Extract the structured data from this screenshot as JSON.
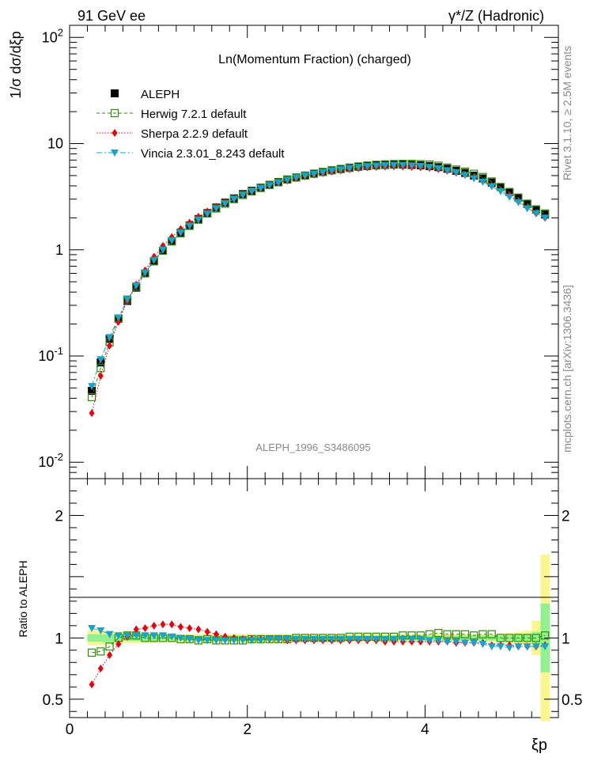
{
  "header": {
    "left": "91 GeV ee",
    "right": "γ*/Z (Hadronic)"
  },
  "side_labels": {
    "rivet": "Rivet 3.1.10, ≥ 2.5M events",
    "mcplots": "mcplots.cern.ch [arXiv:1306.3436]"
  },
  "chart_data": [
    {
      "type": "scatter",
      "panel": "main",
      "title": "Ln(Momentum Fraction) (charged)",
      "ylabel": "1/σ dσ/dξp",
      "watermark": "ALEPH_1996_S3486095",
      "yscale": "log",
      "ylim": [
        0.007,
        130
      ],
      "xlim": [
        0,
        5.5
      ],
      "y_tick_labels": [
        "10^-2",
        "10^-1",
        "1",
        "10",
        "10^2"
      ],
      "legend_position": "top-left",
      "colors": {
        "ALEPH": "#000000",
        "Herwig": "#2e8b0a",
        "Sherpa": "#e8000b",
        "Vincia": "#1ba2c9"
      },
      "x": [
        0.25,
        0.35,
        0.45,
        0.55,
        0.65,
        0.75,
        0.85,
        0.95,
        1.05,
        1.15,
        1.25,
        1.35,
        1.45,
        1.55,
        1.65,
        1.75,
        1.85,
        1.95,
        2.05,
        2.15,
        2.25,
        2.35,
        2.45,
        2.55,
        2.65,
        2.75,
        2.85,
        2.95,
        3.05,
        3.15,
        3.25,
        3.35,
        3.45,
        3.55,
        3.65,
        3.75,
        3.85,
        3.95,
        4.05,
        4.15,
        4.25,
        4.35,
        4.45,
        4.55,
        4.65,
        4.75,
        4.85,
        4.95,
        5.05,
        5.15,
        5.25,
        5.35
      ],
      "series": [
        {
          "name": "ALEPH",
          "marker": "square-filled",
          "values": [
            0.047,
            0.087,
            0.145,
            0.225,
            0.33,
            0.44,
            0.6,
            0.78,
            0.98,
            1.2,
            1.45,
            1.7,
            1.95,
            2.22,
            2.5,
            2.78,
            3.05,
            3.35,
            3.6,
            3.85,
            4.1,
            4.35,
            4.6,
            4.8,
            5.0,
            5.2,
            5.4,
            5.6,
            5.75,
            5.9,
            6.05,
            6.15,
            6.25,
            6.3,
            6.35,
            6.35,
            6.3,
            6.25,
            6.15,
            6.0,
            5.8,
            5.55,
            5.3,
            5.0,
            4.7,
            4.3,
            3.9,
            3.5,
            3.1,
            2.7,
            2.4,
            2.15
          ]
        },
        {
          "name": "Herwig 7.2.1 default",
          "marker": "square-open",
          "values": [
            0.041,
            0.077,
            0.135,
            0.225,
            0.34,
            0.45,
            0.6,
            0.78,
            0.98,
            1.2,
            1.43,
            1.68,
            1.92,
            2.2,
            2.45,
            2.72,
            3.0,
            3.28,
            3.55,
            3.82,
            4.08,
            4.32,
            4.58,
            4.8,
            5.0,
            5.22,
            5.42,
            5.62,
            5.78,
            5.95,
            6.1,
            6.22,
            6.32,
            6.38,
            6.42,
            6.45,
            6.45,
            6.4,
            6.35,
            6.2,
            5.95,
            5.7,
            5.45,
            5.2,
            4.85,
            4.4,
            3.9,
            3.5,
            3.1,
            2.72,
            2.4,
            2.2
          ]
        },
        {
          "name": "Sherpa 2.2.9 default",
          "marker": "diamond-filled",
          "values": [
            0.029,
            0.065,
            0.125,
            0.21,
            0.33,
            0.47,
            0.64,
            0.86,
            1.09,
            1.32,
            1.57,
            1.8,
            2.05,
            2.3,
            2.55,
            2.8,
            3.05,
            3.3,
            3.55,
            3.8,
            4.05,
            4.3,
            4.5,
            4.72,
            4.92,
            5.1,
            5.28,
            5.45,
            5.6,
            5.75,
            5.88,
            5.98,
            6.05,
            6.1,
            6.12,
            6.1,
            6.05,
            5.98,
            5.9,
            5.75,
            5.55,
            5.32,
            5.08,
            4.82,
            4.45,
            4.05,
            3.65,
            3.25,
            2.85,
            2.5,
            2.2,
            2.0
          ]
        },
        {
          "name": "Vincia 2.3.01_8.243 default",
          "marker": "triangle-down-filled",
          "values": [
            0.052,
            0.093,
            0.15,
            0.23,
            0.34,
            0.46,
            0.61,
            0.8,
            1.0,
            1.22,
            1.45,
            1.68,
            1.92,
            2.18,
            2.45,
            2.72,
            3.0,
            3.28,
            3.55,
            3.8,
            4.05,
            4.3,
            4.55,
            4.78,
            4.98,
            5.18,
            5.38,
            5.58,
            5.72,
            5.88,
            6.02,
            6.12,
            6.2,
            6.25,
            6.28,
            6.28,
            6.22,
            6.15,
            6.02,
            5.85,
            5.6,
            5.35,
            5.05,
            4.7,
            4.35,
            3.95,
            3.55,
            3.15,
            2.8,
            2.45,
            2.2,
            2.0
          ]
        }
      ]
    },
    {
      "type": "scatter",
      "panel": "ratio",
      "ylabel": "Ratio to ALEPH",
      "xlabel": "ξp",
      "ylim": [
        0.35,
        2.3
      ],
      "xlim": [
        0,
        5.5
      ],
      "x_tick_labels": [
        "0",
        "2",
        "4"
      ],
      "y_tick_labels": [
        "0.5",
        "1",
        "2"
      ],
      "x": [
        0.25,
        0.35,
        0.45,
        0.55,
        0.65,
        0.75,
        0.85,
        0.95,
        1.05,
        1.15,
        1.25,
        1.35,
        1.45,
        1.55,
        1.65,
        1.75,
        1.85,
        1.95,
        2.05,
        2.15,
        2.25,
        2.35,
        2.45,
        2.55,
        2.65,
        2.75,
        2.85,
        2.95,
        3.05,
        3.15,
        3.25,
        3.35,
        3.45,
        3.55,
        3.65,
        3.75,
        3.85,
        3.95,
        4.05,
        4.15,
        4.25,
        4.35,
        4.45,
        4.55,
        4.65,
        4.75,
        4.85,
        4.95,
        5.05,
        5.15,
        5.25,
        5.35
      ],
      "uncertainty_band": {
        "inner": [
          0.03,
          0.03,
          0.03,
          0.03,
          0.025,
          0.025,
          0.025,
          0.025,
          0.02,
          0.02,
          0.02,
          0.02,
          0.02,
          0.02,
          0.02,
          0.02,
          0.02,
          0.02,
          0.02,
          0.02,
          0.02,
          0.02,
          0.02,
          0.02,
          0.02,
          0.02,
          0.02,
          0.02,
          0.02,
          0.02,
          0.02,
          0.02,
          0.02,
          0.02,
          0.02,
          0.02,
          0.02,
          0.02,
          0.02,
          0.02,
          0.02,
          0.02,
          0.02,
          0.02,
          0.02,
          0.02,
          0.02,
          0.02,
          0.03,
          0.03,
          0.05,
          0.28
        ],
        "outer": [
          0.06,
          0.06,
          0.05,
          0.05,
          0.04,
          0.04,
          0.04,
          0.04,
          0.035,
          0.035,
          0.03,
          0.03,
          0.03,
          0.03,
          0.03,
          0.03,
          0.03,
          0.03,
          0.03,
          0.03,
          0.03,
          0.03,
          0.03,
          0.03,
          0.03,
          0.03,
          0.03,
          0.03,
          0.03,
          0.03,
          0.03,
          0.03,
          0.03,
          0.03,
          0.03,
          0.03,
          0.03,
          0.03,
          0.03,
          0.03,
          0.03,
          0.03,
          0.03,
          0.03,
          0.03,
          0.03,
          0.035,
          0.04,
          0.05,
          0.06,
          0.14,
          0.68
        ]
      },
      "series": [
        {
          "name": "Herwig 7.2.1 default",
          "marker": "square-open",
          "values": [
            0.88,
            0.89,
            0.93,
            1.0,
            1.02,
            1.02,
            1.0,
            1.0,
            1.0,
            1.0,
            0.99,
            0.99,
            0.98,
            0.99,
            0.98,
            0.98,
            0.98,
            0.98,
            0.99,
            0.99,
            0.99,
            0.99,
            0.99,
            1.0,
            1.0,
            1.0,
            1.0,
            1.0,
            1.0,
            1.01,
            1.01,
            1.01,
            1.01,
            1.01,
            1.01,
            1.02,
            1.02,
            1.02,
            1.03,
            1.04,
            1.03,
            1.03,
            1.03,
            1.02,
            1.03,
            1.03,
            1.0,
            1.0,
            1.0,
            1.0,
            1.0,
            1.02
          ]
        },
        {
          "name": "Sherpa 2.2.9 default",
          "marker": "diamond-filled",
          "values": [
            0.62,
            0.75,
            0.86,
            0.95,
            1.01,
            1.07,
            1.08,
            1.1,
            1.11,
            1.11,
            1.09,
            1.08,
            1.07,
            1.05,
            1.03,
            1.01,
            1.0,
            0.99,
            0.99,
            0.99,
            0.99,
            0.99,
            0.98,
            0.98,
            0.98,
            0.98,
            0.98,
            0.98,
            0.98,
            0.98,
            0.98,
            0.98,
            0.98,
            0.97,
            0.97,
            0.97,
            0.97,
            0.97,
            0.97,
            0.97,
            0.97,
            0.96,
            0.96,
            0.96,
            0.96,
            0.94,
            0.94,
            0.94,
            0.93,
            0.93,
            0.93,
            0.94
          ]
        },
        {
          "name": "Vincia 2.3.01_8.243 default",
          "marker": "triangle-down-filled",
          "values": [
            1.08,
            1.06,
            1.03,
            1.02,
            1.02,
            1.02,
            1.02,
            1.02,
            1.02,
            1.01,
            1.0,
            0.99,
            0.98,
            0.98,
            0.98,
            0.98,
            0.98,
            0.98,
            0.98,
            0.98,
            0.99,
            0.99,
            0.99,
            0.99,
            0.99,
            0.99,
            0.99,
            0.99,
            0.99,
            0.99,
            0.99,
            0.99,
            0.99,
            0.99,
            0.99,
            0.99,
            0.99,
            0.99,
            0.98,
            0.98,
            0.97,
            0.97,
            0.96,
            0.96,
            0.95,
            0.93,
            0.93,
            0.92,
            0.93,
            0.93,
            0.93,
            0.93
          ]
        }
      ]
    }
  ]
}
